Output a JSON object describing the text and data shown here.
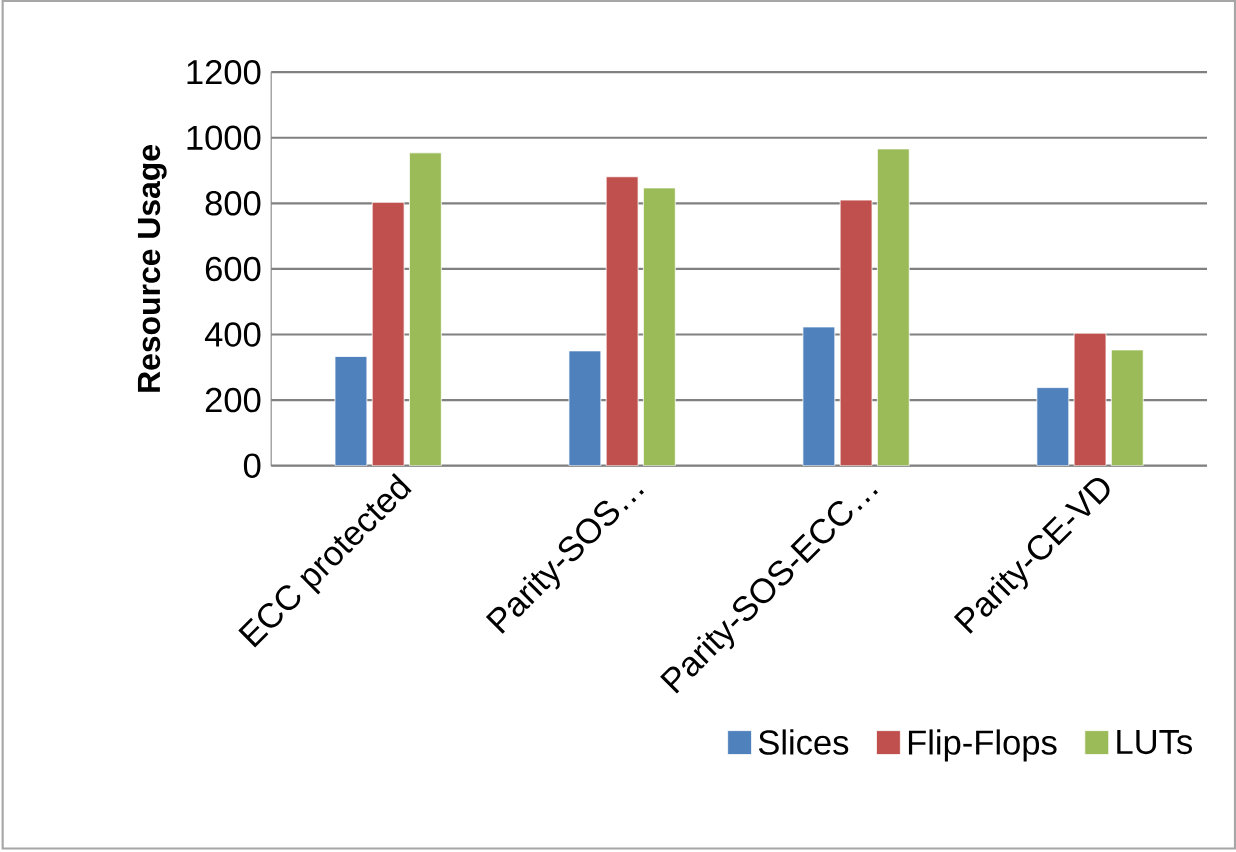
{
  "chart_data": {
    "type": "bar",
    "ylabel": "Resource Usage",
    "categories": [
      "ECC protected",
      "Parity-SOS…",
      "Parity-SOS-ECC…",
      "Parity-CE-VD"
    ],
    "series": [
      {
        "name": "Slices",
        "color": "#4f81bd",
        "values": [
          333,
          350,
          423,
          238
        ]
      },
      {
        "name": "Flip-Flops",
        "color": "#c0504d",
        "values": [
          803,
          881,
          810,
          404
        ]
      },
      {
        "name": "LUTs",
        "color": "#9bbb59",
        "values": [
          954,
          847,
          966,
          353
        ]
      }
    ],
    "ylim": [
      0,
      1200
    ],
    "yticks": [
      0,
      200,
      400,
      600,
      800,
      1000,
      1200
    ],
    "grid": "y",
    "legend": "bottom right"
  }
}
